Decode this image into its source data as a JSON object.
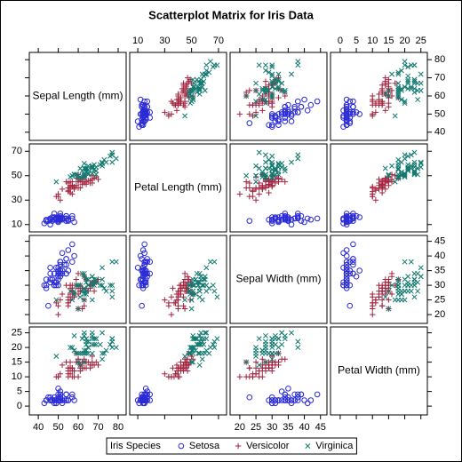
{
  "chart_data": {
    "type": "scatter_matrix",
    "title": "Scatterplot Matrix for Iris Data",
    "legend_title": "Iris Species",
    "variables": [
      {
        "label": "Sepal Length (mm)",
        "lim": [
          35.5,
          84
        ],
        "ticks": [
          40,
          50,
          60,
          70,
          80
        ]
      },
      {
        "label": "Petal Length (mm)",
        "lim": [
          4,
          76
        ],
        "ticks": [
          10,
          30,
          50,
          70
        ]
      },
      {
        "label": "Sepal Width (mm)",
        "lim": [
          17,
          47
        ],
        "ticks": [
          20,
          25,
          30,
          35,
          40,
          45
        ]
      },
      {
        "label": "Petal Width (mm)",
        "lim": [
          -3,
          27
        ],
        "ticks": [
          0,
          5,
          10,
          15,
          20,
          25
        ]
      }
    ],
    "series": [
      {
        "name": "Setosa",
        "color": "#2b2bd6",
        "marker": "circle",
        "values": [
          [
            51,
            14,
            35,
            2
          ],
          [
            49,
            14,
            30,
            2
          ],
          [
            47,
            13,
            32,
            2
          ],
          [
            46,
            15,
            31,
            2
          ],
          [
            50,
            14,
            36,
            2
          ],
          [
            54,
            17,
            39,
            4
          ],
          [
            46,
            14,
            34,
            3
          ],
          [
            50,
            15,
            34,
            2
          ],
          [
            44,
            14,
            29,
            2
          ],
          [
            49,
            15,
            31,
            1
          ],
          [
            54,
            15,
            37,
            2
          ],
          [
            48,
            16,
            34,
            2
          ],
          [
            48,
            14,
            30,
            1
          ],
          [
            43,
            11,
            30,
            1
          ],
          [
            58,
            12,
            40,
            2
          ],
          [
            57,
            15,
            44,
            4
          ],
          [
            54,
            13,
            39,
            4
          ],
          [
            51,
            14,
            35,
            3
          ],
          [
            57,
            17,
            38,
            3
          ],
          [
            51,
            15,
            38,
            3
          ],
          [
            54,
            17,
            34,
            2
          ],
          [
            51,
            15,
            37,
            4
          ],
          [
            46,
            10,
            36,
            2
          ],
          [
            51,
            17,
            33,
            5
          ],
          [
            48,
            19,
            34,
            2
          ],
          [
            50,
            16,
            30,
            2
          ],
          [
            50,
            16,
            34,
            4
          ],
          [
            52,
            15,
            35,
            2
          ],
          [
            52,
            14,
            34,
            2
          ],
          [
            47,
            16,
            32,
            2
          ],
          [
            48,
            16,
            31,
            2
          ],
          [
            54,
            15,
            34,
            4
          ],
          [
            52,
            15,
            41,
            1
          ],
          [
            55,
            14,
            42,
            2
          ],
          [
            49,
            15,
            31,
            2
          ],
          [
            50,
            12,
            32,
            2
          ],
          [
            55,
            13,
            35,
            2
          ],
          [
            49,
            14,
            36,
            1
          ],
          [
            44,
            13,
            30,
            2
          ],
          [
            51,
            15,
            34,
            2
          ],
          [
            50,
            13,
            35,
            3
          ],
          [
            45,
            13,
            23,
            3
          ],
          [
            44,
            13,
            32,
            2
          ],
          [
            50,
            16,
            35,
            6
          ],
          [
            51,
            19,
            38,
            4
          ],
          [
            48,
            14,
            30,
            3
          ],
          [
            51,
            16,
            38,
            2
          ],
          [
            46,
            14,
            32,
            2
          ],
          [
            53,
            15,
            37,
            2
          ],
          [
            50,
            14,
            33,
            2
          ]
        ]
      },
      {
        "name": "Versicolor",
        "color": "#a3243f",
        "marker": "plus",
        "values": [
          [
            70,
            47,
            32,
            14
          ],
          [
            64,
            45,
            32,
            15
          ],
          [
            69,
            49,
            31,
            15
          ],
          [
            55,
            40,
            23,
            13
          ],
          [
            65,
            46,
            28,
            15
          ],
          [
            57,
            45,
            28,
            13
          ],
          [
            63,
            47,
            33,
            16
          ],
          [
            49,
            33,
            24,
            10
          ],
          [
            66,
            46,
            29,
            13
          ],
          [
            52,
            39,
            27,
            14
          ],
          [
            50,
            35,
            20,
            10
          ],
          [
            59,
            42,
            30,
            15
          ],
          [
            60,
            40,
            22,
            10
          ],
          [
            61,
            47,
            29,
            14
          ],
          [
            56,
            36,
            29,
            13
          ],
          [
            67,
            44,
            31,
            14
          ],
          [
            56,
            45,
            30,
            15
          ],
          [
            58,
            41,
            27,
            10
          ],
          [
            62,
            45,
            22,
            15
          ],
          [
            56,
            39,
            25,
            11
          ],
          [
            59,
            48,
            32,
            18
          ],
          [
            61,
            40,
            28,
            13
          ],
          [
            63,
            49,
            25,
            15
          ],
          [
            61,
            47,
            28,
            12
          ],
          [
            64,
            43,
            29,
            13
          ],
          [
            66,
            44,
            30,
            14
          ],
          [
            68,
            48,
            28,
            14
          ],
          [
            67,
            50,
            30,
            17
          ],
          [
            60,
            45,
            29,
            15
          ],
          [
            57,
            35,
            26,
            10
          ],
          [
            55,
            38,
            24,
            11
          ],
          [
            55,
            37,
            24,
            10
          ],
          [
            58,
            39,
            27,
            12
          ],
          [
            60,
            51,
            27,
            16
          ],
          [
            54,
            45,
            30,
            15
          ],
          [
            60,
            45,
            34,
            16
          ],
          [
            67,
            47,
            31,
            15
          ],
          [
            63,
            44,
            23,
            13
          ],
          [
            56,
            41,
            30,
            13
          ],
          [
            55,
            40,
            25,
            13
          ],
          [
            55,
            44,
            26,
            12
          ],
          [
            61,
            46,
            30,
            14
          ],
          [
            58,
            40,
            26,
            12
          ],
          [
            50,
            33,
            23,
            10
          ],
          [
            56,
            42,
            27,
            13
          ],
          [
            57,
            42,
            30,
            12
          ],
          [
            57,
            42,
            29,
            13
          ],
          [
            62,
            43,
            29,
            13
          ],
          [
            51,
            30,
            25,
            11
          ],
          [
            57,
            41,
            28,
            13
          ]
        ]
      },
      {
        "name": "Virginica",
        "color": "#127a70",
        "marker": "x",
        "values": [
          [
            63,
            60,
            33,
            25
          ],
          [
            58,
            51,
            27,
            19
          ],
          [
            71,
            59,
            30,
            21
          ],
          [
            63,
            56,
            29,
            18
          ],
          [
            65,
            58,
            30,
            22
          ],
          [
            76,
            66,
            30,
            21
          ],
          [
            49,
            45,
            25,
            17
          ],
          [
            73,
            63,
            29,
            18
          ],
          [
            67,
            58,
            25,
            18
          ],
          [
            72,
            61,
            36,
            25
          ],
          [
            65,
            51,
            32,
            20
          ],
          [
            64,
            53,
            27,
            19
          ],
          [
            68,
            55,
            30,
            21
          ],
          [
            57,
            50,
            25,
            20
          ],
          [
            58,
            51,
            28,
            24
          ],
          [
            64,
            53,
            32,
            23
          ],
          [
            65,
            55,
            30,
            18
          ],
          [
            77,
            67,
            38,
            22
          ],
          [
            77,
            69,
            26,
            23
          ],
          [
            60,
            50,
            22,
            15
          ],
          [
            69,
            57,
            32,
            23
          ],
          [
            56,
            49,
            28,
            20
          ],
          [
            77,
            67,
            28,
            20
          ],
          [
            63,
            49,
            27,
            18
          ],
          [
            67,
            57,
            33,
            21
          ],
          [
            72,
            60,
            32,
            18
          ],
          [
            62,
            48,
            28,
            18
          ],
          [
            61,
            49,
            30,
            18
          ],
          [
            64,
            56,
            28,
            21
          ],
          [
            72,
            58,
            30,
            16
          ],
          [
            74,
            61,
            28,
            19
          ],
          [
            79,
            64,
            38,
            20
          ],
          [
            64,
            56,
            28,
            22
          ],
          [
            63,
            51,
            28,
            15
          ],
          [
            61,
            56,
            26,
            14
          ],
          [
            77,
            61,
            30,
            23
          ],
          [
            63,
            56,
            34,
            24
          ],
          [
            64,
            55,
            31,
            18
          ],
          [
            60,
            48,
            30,
            18
          ],
          [
            69,
            54,
            31,
            21
          ],
          [
            67,
            56,
            31,
            24
          ],
          [
            69,
            51,
            31,
            23
          ],
          [
            58,
            51,
            27,
            19
          ],
          [
            68,
            59,
            32,
            23
          ],
          [
            67,
            57,
            33,
            25
          ],
          [
            67,
            52,
            30,
            23
          ],
          [
            63,
            50,
            25,
            19
          ],
          [
            65,
            52,
            30,
            20
          ],
          [
            62,
            54,
            34,
            23
          ],
          [
            59,
            51,
            30,
            18
          ]
        ]
      }
    ]
  }
}
